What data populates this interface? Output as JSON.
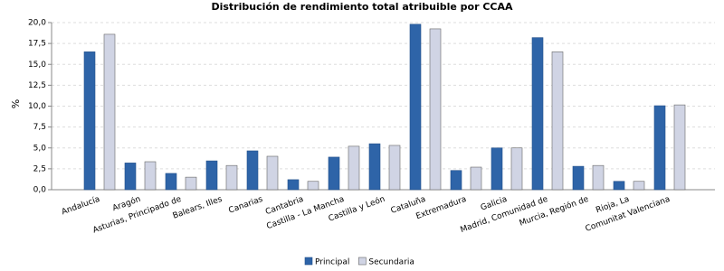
{
  "chart_data": {
    "type": "bar",
    "title": "Distribución de rendimiento total atribuible por CCAA",
    "ylabel": "%",
    "categories": [
      "Andalucía",
      "Aragón",
      "Asturias, Principado de",
      "Balears, Illes",
      "Canarias",
      "Cantabria",
      "Castilla - La Mancha",
      "Castilla y León",
      "Cataluña",
      "Extremadura",
      "Galicia",
      "Madrid, Comunidad de",
      "Murcia, Región de",
      "Rioja, La",
      "Comunitat Valenciana"
    ],
    "series": [
      {
        "name": "Principal",
        "color": "#2e64a8",
        "values": [
          16.5,
          3.2,
          1.95,
          3.45,
          4.65,
          1.2,
          3.9,
          5.5,
          19.8,
          2.3,
          5.0,
          18.2,
          2.8,
          1.0,
          10.05
        ]
      },
      {
        "name": "Secundaria",
        "color": "#d0d4e4",
        "values": [
          18.6,
          3.35,
          1.5,
          2.9,
          4.0,
          1.0,
          5.2,
          5.3,
          19.25,
          2.7,
          5.0,
          16.5,
          2.9,
          1.0,
          10.15
        ]
      }
    ],
    "ylim": [
      0,
      20
    ],
    "yticks": [
      {
        "value": 0,
        "label": "0,0"
      },
      {
        "value": 2.5,
        "label": "2,5"
      },
      {
        "value": 5,
        "label": "5,0"
      },
      {
        "value": 7.5,
        "label": "7,5"
      },
      {
        "value": 10,
        "label": "10,0"
      },
      {
        "value": 12.5,
        "label": "12,5"
      },
      {
        "value": 15,
        "label": "15,0"
      },
      {
        "value": 17.5,
        "label": "17,5"
      },
      {
        "value": 20,
        "label": "20,0"
      }
    ],
    "grid": true
  }
}
